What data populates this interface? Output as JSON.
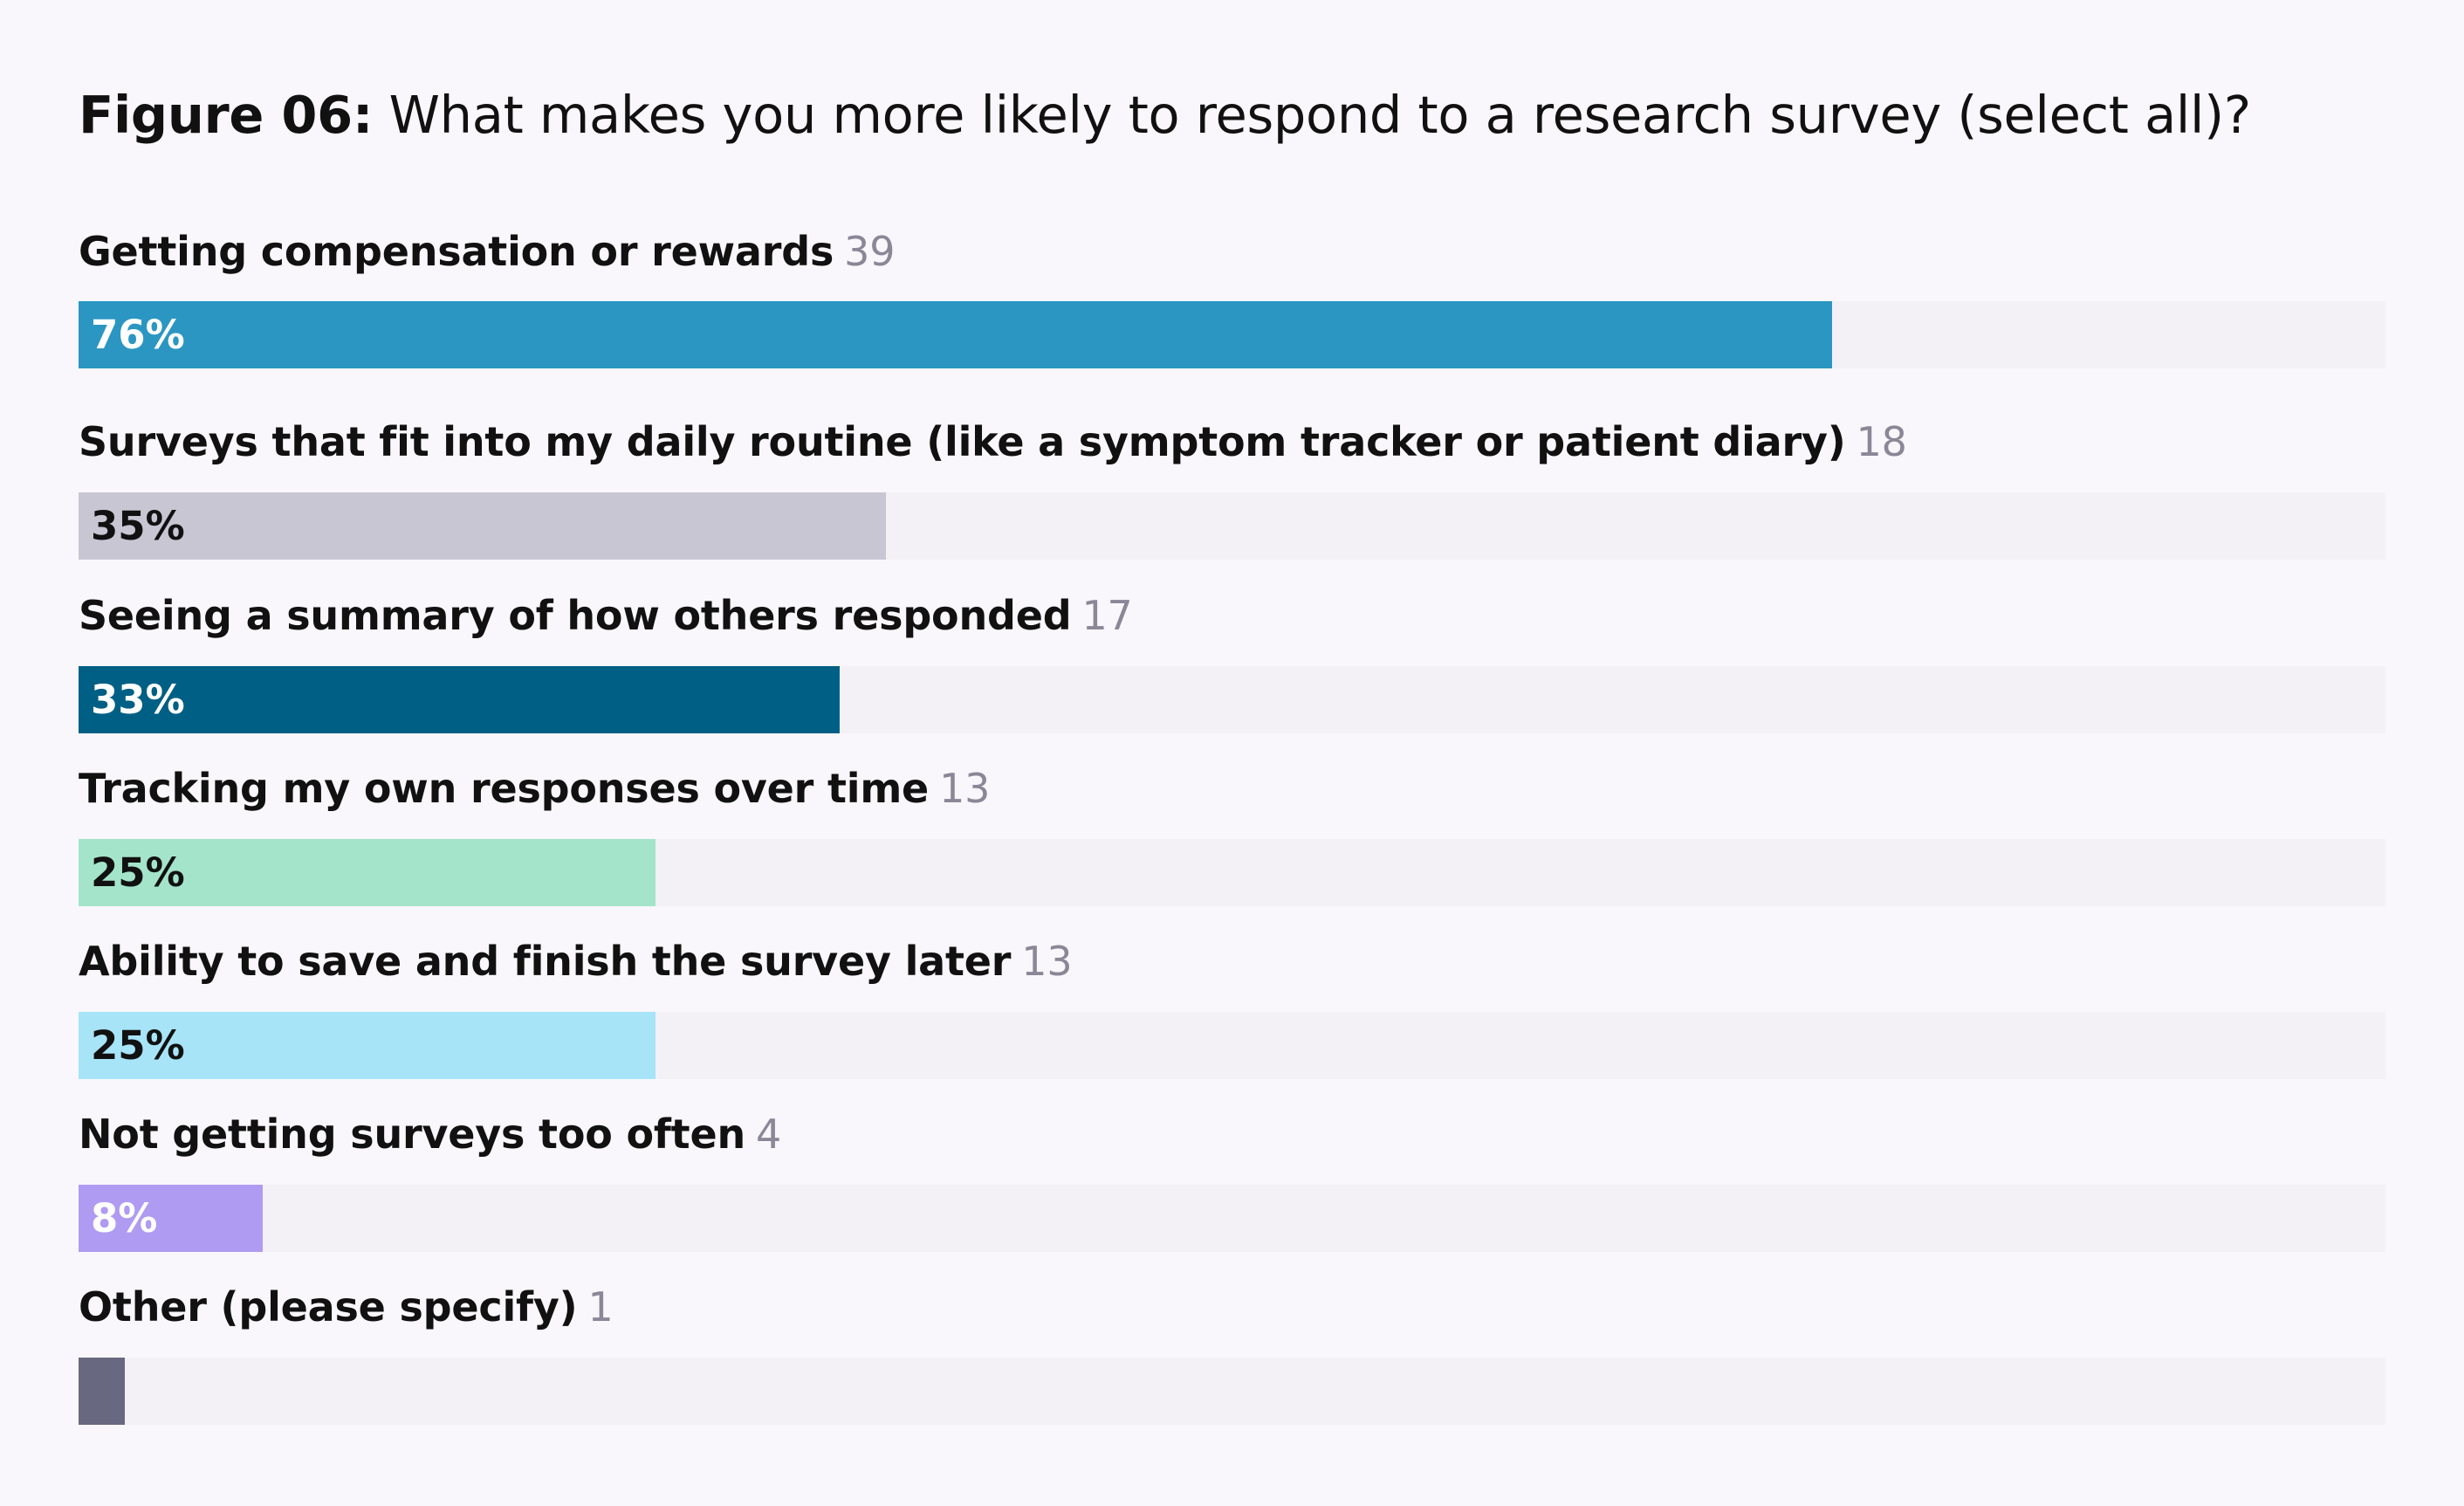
{
  "title": {
    "prefix": "Figure 06:",
    "text": "What makes you more likely to respond to a research survey (select all)?"
  },
  "chart_data": {
    "type": "bar",
    "orientation": "horizontal",
    "title": "Figure 06: What makes you more likely to respond to a research survey (select all)?",
    "categories": [
      "Getting compensation or rewards",
      "Surveys that fit into my daily routine (like a symptom tracker or patient diary)",
      "Seeing a summary of how others responded",
      "Tracking my own responses over time",
      "Ability to save and finish the survey later",
      "Not getting surveys too often",
      "Other (please specify)"
    ],
    "counts": [
      39,
      18,
      17,
      13,
      13,
      4,
      1
    ],
    "values": [
      76,
      35,
      33,
      25,
      25,
      8,
      2
    ],
    "value_labels": [
      "76%",
      "35%",
      "33%",
      "25%",
      "25%",
      "8%",
      ""
    ],
    "colors": [
      "#2b96c2",
      "#c8c6d3",
      "#005f84",
      "#a4e4cb",
      "#a7e4f8",
      "#b09bf2",
      "#686980"
    ],
    "label_colors": [
      "#ffffff",
      "#111111",
      "#ffffff",
      "#111111",
      "#111111",
      "#ffffff",
      "#ffffff"
    ],
    "xlim": [
      0,
      100
    ],
    "grid": false,
    "legend": "none"
  }
}
